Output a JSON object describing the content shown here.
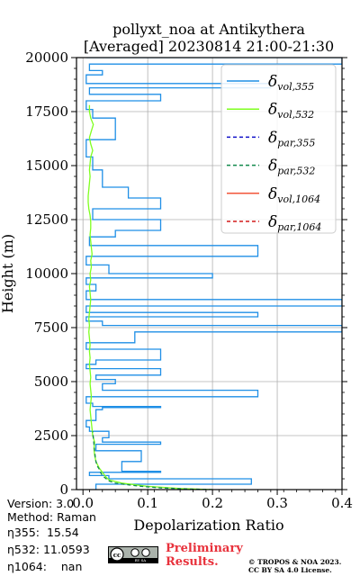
{
  "chart_data": {
    "type": "line",
    "title_line1": "pollyxt_noa at Antikythera",
    "title_line2": "[Averaged] 20230814 21:00-21:30",
    "xlabel": "Depolarization Ratio",
    "ylabel": "Height (m)",
    "xlim": [
      -0.01,
      0.4
    ],
    "ylim": [
      0,
      20000
    ],
    "xticks": [
      "0.0",
      "0.1",
      "0.2",
      "0.3",
      "0.4"
    ],
    "yticks": [
      "0",
      "2500",
      "5000",
      "7500",
      "10000",
      "12500",
      "15000",
      "17500",
      "20000"
    ],
    "grid": true,
    "legend_position": "top-right",
    "series": [
      {
        "key": "vol355",
        "sym": "δ",
        "sub": "vol,355",
        "color": "#1f8fe6",
        "dash": "",
        "x": [
          0.02,
          0.26,
          0.04,
          0.01,
          0.12,
          0.06,
          0.09,
          0.02,
          0.12,
          0.03,
          0.04,
          0.01,
          0.005,
          0.02,
          0.03,
          0.12,
          0.015,
          0.005,
          0.27,
          0.03,
          0.05,
          0.02,
          0.12,
          0.005,
          0.02,
          0.12,
          0.005,
          0.08,
          0.4,
          0.03,
          0.005,
          0.27,
          0.005,
          0.4,
          0.005,
          0.02,
          0.005,
          0.2,
          0.04,
          0.005,
          0.27,
          0.01,
          0.05,
          0.12,
          0.015,
          0.12,
          0.07,
          0.03,
          0.015,
          0.005,
          0.005,
          0.05,
          0.015,
          0.005,
          0.005,
          0.12,
          0.01,
          0.29,
          0.005,
          0.03,
          0.01,
          0.4,
          0.01,
          0.04,
          0.005
        ],
        "y": [
          250,
          500,
          650,
          800,
          850,
          1300,
          1800,
          2100,
          2200,
          2400,
          2700,
          2900,
          3200,
          3700,
          3800,
          3850,
          4000,
          4300,
          4600,
          4900,
          5100,
          5300,
          5600,
          5800,
          6000,
          6500,
          6800,
          7300,
          7600,
          7800,
          8000,
          8200,
          8500,
          8800,
          9200,
          9500,
          9800,
          10000,
          10400,
          10800,
          11300,
          11700,
          12000,
          12500,
          13000,
          13500,
          14000,
          14800,
          15400,
          15800,
          16200,
          17200,
          17600,
          17800,
          18000,
          18300,
          18600,
          18800,
          19200,
          19400,
          19700,
          20000,
          20000,
          20000,
          20000
        ]
      },
      {
        "key": "vol532",
        "sym": "δ",
        "sub": "vol,532",
        "color": "#7fff1f",
        "dash": "",
        "x": [
          0.2,
          0.15,
          0.1,
          0.06,
          0.04,
          0.035,
          0.03,
          0.025,
          0.02,
          0.018,
          0.017,
          0.018,
          0.015,
          0.014,
          0.013,
          0.012,
          0.011,
          0.012,
          0.013,
          0.012,
          0.011,
          0.012,
          0.011,
          0.01,
          0.011,
          0.01,
          0.011,
          0.01,
          0.009,
          0.01,
          0.009,
          0.01,
          0.011,
          0.012,
          0.011,
          0.01,
          0.012,
          0.011,
          0.013,
          0.012,
          0.014,
          0.013,
          0.012,
          0.011,
          0.012,
          0.012,
          0.011,
          0.009,
          0.008,
          0.008,
          0.009,
          0.01,
          0.011,
          0.01,
          0.011,
          0.012,
          0.015,
          0.012,
          0.01,
          0.013,
          0.016,
          0.012,
          0.01,
          0.01
        ],
        "y": [
          0,
          50,
          150,
          300,
          450,
          600,
          800,
          1000,
          1300,
          1600,
          1900,
          2200,
          2500,
          2800,
          3100,
          3400,
          3700,
          4000,
          4300,
          4600,
          4900,
          5200,
          5500,
          5800,
          6100,
          6400,
          6700,
          7000,
          7300,
          7600,
          7900,
          8200,
          8500,
          8800,
          9100,
          9400,
          9700,
          10000,
          10300,
          10600,
          10900,
          11200,
          11500,
          11800,
          12100,
          12400,
          12700,
          13000,
          13300,
          13600,
          13900,
          14200,
          14500,
          14800,
          15100,
          15400,
          15700,
          16000,
          16300,
          16600,
          16900,
          17200,
          17500,
          17800
        ]
      },
      {
        "key": "par355",
        "sym": "δ",
        "sub": "par,355",
        "color": "#1010c8",
        "dash": "4,3",
        "x": [],
        "y": []
      },
      {
        "key": "par532",
        "sym": "δ",
        "sub": "par,532",
        "color": "#128a4c",
        "dash": "4,3",
        "x": [
          0.2,
          0.16,
          0.12,
          0.09,
          0.07,
          0.05,
          0.04,
          0.035,
          0.03,
          0.027,
          0.025,
          0.022,
          0.02,
          0.019,
          0.018,
          0.017,
          0.016,
          0.015
        ],
        "y": [
          0,
          30,
          80,
          150,
          220,
          300,
          400,
          520,
          650,
          800,
          950,
          1100,
          1300,
          1500,
          1800,
          2100,
          2400,
          2700
        ]
      },
      {
        "key": "vol1064",
        "sym": "δ",
        "sub": "vol,1064",
        "color": "#f2553a",
        "dash": "",
        "x": [],
        "y": []
      },
      {
        "key": "par1064",
        "sym": "δ",
        "sub": "par,1064",
        "color": "#d41a1a",
        "dash": "4,3",
        "x": [],
        "y": []
      }
    ]
  },
  "info": {
    "version": "Version: 3.0",
    "method": "Method: Raman",
    "eta355_label": "η355:",
    "eta355_value": "15.54",
    "eta532_label": "η532:",
    "eta532_value": "11.0593",
    "eta1064_label": "η1064:",
    "eta1064_value": "nan"
  },
  "footer": {
    "preliminary_line1": "Preliminary",
    "preliminary_line2": "Results.",
    "copyright_line1": "© TROPOS & NOA 2023.",
    "copyright_line2": "CC BY SA 4.0 License.",
    "cc_badge_text": "BY SA"
  }
}
